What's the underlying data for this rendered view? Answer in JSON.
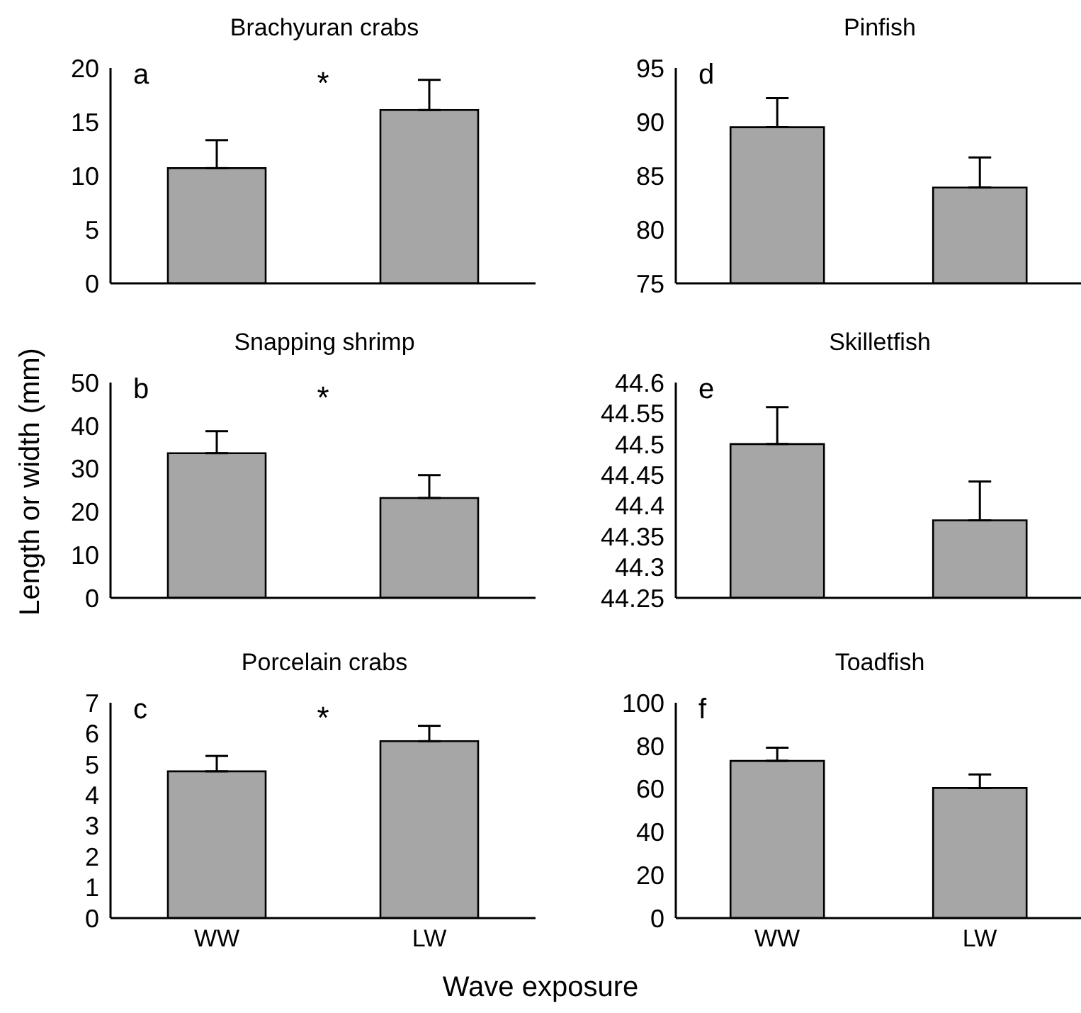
{
  "chart_data": [
    {
      "type": "bar",
      "title": "Brachyuran crabs",
      "categories": [
        null,
        null
      ],
      "values": [
        10.7,
        16.1
      ],
      "errors": [
        2.6,
        2.8
      ],
      "color": "#a6a6a6",
      "ylim": [
        0,
        20
      ],
      "yticks": [
        0,
        5,
        10,
        15,
        20
      ],
      "tick_labels": "y",
      "annotations": [
        "a",
        "*"
      ]
    },
    {
      "type": "bar",
      "title": "Snapping shrimp",
      "ylabel": "Length or width (mm)",
      "categories": [
        null,
        null
      ],
      "values": [
        33.6,
        23.2
      ],
      "errors": [
        5.1,
        5.3
      ],
      "color": "#a6a6a6",
      "ylim": [
        0,
        50
      ],
      "yticks": [
        0,
        10,
        20,
        30,
        40,
        50
      ],
      "tick_labels": "y",
      "annotations": [
        "b",
        "*"
      ]
    },
    {
      "type": "bar",
      "title": "Porcelain crabs",
      "xlabel": "Wave exposure",
      "categories": [
        "WW",
        "LW"
      ],
      "values": [
        4.77,
        5.75
      ],
      "errors": [
        0.5,
        0.5
      ],
      "color": "#a6a6a6",
      "ylim": [
        0,
        7
      ],
      "yticks": [
        0,
        1,
        2,
        3,
        4,
        5,
        6,
        7
      ],
      "annotations": [
        "c",
        "*"
      ]
    },
    {
      "type": "bar",
      "title": "Pinfish",
      "categories": [
        null,
        null
      ],
      "values": [
        89.5,
        83.9
      ],
      "errors": [
        2.7,
        2.8
      ],
      "color": "#a6a6a6",
      "ylim": [
        75,
        95
      ],
      "yticks": [
        75,
        80,
        85,
        90,
        95
      ],
      "tick_labels": "y",
      "annotations": [
        "d"
      ]
    },
    {
      "type": "bar",
      "title": "Skilletfish",
      "categories": [
        null,
        null
      ],
      "values": [
        44.5,
        44.376
      ],
      "errors": [
        0.06,
        0.063
      ],
      "color": "#a6a6a6",
      "ylim": [
        44.25,
        44.6
      ],
      "yticks": [
        44.25,
        44.3,
        44.35,
        44.4,
        44.45,
        44.5,
        44.55,
        44.6
      ],
      "tick_labels": "y",
      "annotations": [
        "e"
      ]
    },
    {
      "type": "bar",
      "title": "Toadfish",
      "categories": [
        "WW",
        "LW"
      ],
      "values": [
        73,
        60.4
      ],
      "errors": [
        6.1,
        6.3
      ],
      "color": "#a6a6a6",
      "ylim": [
        0,
        100
      ],
      "yticks": [
        0,
        20,
        40,
        60,
        80,
        100
      ],
      "annotations": [
        "f"
      ]
    }
  ]
}
